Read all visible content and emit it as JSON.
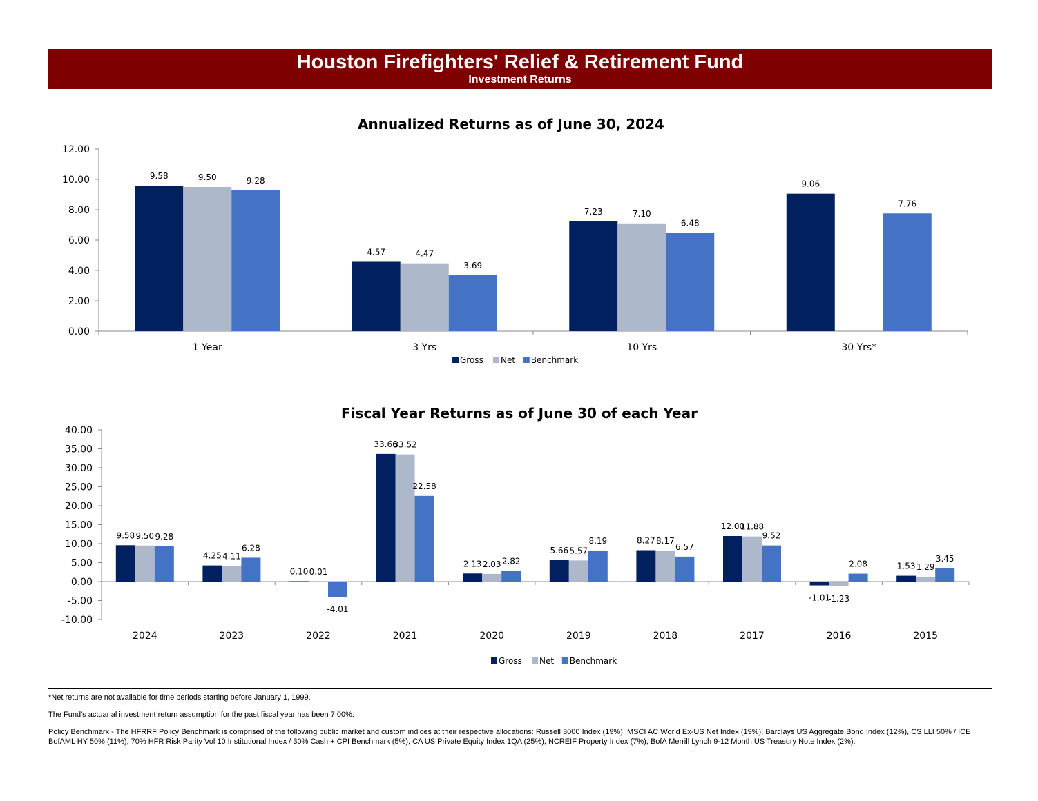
{
  "header": {
    "title": "Houston Firefighters' Relief & Retirement Fund",
    "subtitle": "Investment Returns"
  },
  "colors": {
    "gross": "#002060",
    "net": "#adb9ca",
    "benchmark": "#4472c4",
    "banner": "#7f0000"
  },
  "chart_data": [
    {
      "type": "bar",
      "title": "Annualized Returns as of June 30, 2024",
      "categories": [
        "1 Year",
        "3 Yrs",
        "10 Yrs",
        "30 Yrs*"
      ],
      "series": [
        {
          "name": "Gross",
          "values": [
            9.58,
            4.57,
            7.23,
            9.06
          ],
          "labels": [
            "9.58",
            "4.57",
            "7.23",
            "9.06"
          ]
        },
        {
          "name": "Net",
          "values": [
            9.5,
            4.47,
            7.1,
            null
          ],
          "labels": [
            "9.50",
            "4.47",
            "7.10",
            ""
          ]
        },
        {
          "name": "Benchmark",
          "values": [
            9.28,
            3.69,
            6.48,
            7.76
          ],
          "labels": [
            "9.28",
            "3.69",
            "6.48",
            "7.76"
          ]
        }
      ],
      "ylim": [
        0,
        12
      ],
      "yticks": [
        "0.00",
        "2.00",
        "4.00",
        "6.00",
        "8.00",
        "10.00",
        "12.00"
      ],
      "ytick_values": [
        0,
        2,
        4,
        6,
        8,
        10,
        12
      ],
      "legend": "bottom",
      "grid": false
    },
    {
      "type": "bar",
      "title": "Fiscal Year Returns as of June 30 of each Year",
      "categories": [
        "2024",
        "2023",
        "2022",
        "2021",
        "2020",
        "2019",
        "2018",
        "2017",
        "2016",
        "2015"
      ],
      "series": [
        {
          "name": "Gross",
          "values": [
            9.58,
            4.25,
            0.1,
            33.66,
            2.13,
            5.66,
            8.27,
            12.0,
            -1.01,
            1.53
          ],
          "labels": [
            "9.58",
            "4.25",
            "0.10",
            "33.66",
            "2.13",
            "5.66",
            "8.27",
            "12.00",
            "-1.01",
            "1.53"
          ]
        },
        {
          "name": "Net",
          "values": [
            9.5,
            4.11,
            0.01,
            33.52,
            2.03,
            5.57,
            8.17,
            11.88,
            -1.23,
            1.29
          ],
          "labels": [
            "9.50",
            "4.11",
            "0.01",
            "33.52",
            "2.03",
            "5.57",
            "8.17",
            "11.88",
            "-1.23",
            "1.29"
          ]
        },
        {
          "name": "Benchmark",
          "values": [
            9.28,
            6.28,
            -4.01,
            22.58,
            2.82,
            8.19,
            6.57,
            9.52,
            2.08,
            3.45
          ],
          "labels": [
            "9.28",
            "6.28",
            "-4.01",
            "22.58",
            "2.82",
            "8.19",
            "6.57",
            "9.52",
            "2.08",
            "3.45"
          ]
        }
      ],
      "ylim": [
        -10,
        40
      ],
      "yticks": [
        "-10.00",
        "-5.00",
        "0.00",
        "5.00",
        "10.00",
        "15.00",
        "20.00",
        "25.00",
        "30.00",
        "35.00",
        "40.00"
      ],
      "ytick_values": [
        -10,
        -5,
        0,
        5,
        10,
        15,
        20,
        25,
        30,
        35,
        40
      ],
      "legend": "bottom",
      "grid": false
    }
  ],
  "footer": {
    "note1": "*Net returns are not available for time periods starting before January 1, 1999.",
    "note2": "The Fund's actuarial investment return assumption for the past fiscal year has been 7.00%.",
    "note3": "Policy Benchmark - The HFRRF Policy Benchmark is comprised of the following public market and custom indices at their respective allocations: Russell 3000 Index (19%), MSCI AC World Ex-US Net Index (19%), Barclays US Aggregate Bond Index (12%), CS LLI 50% / ICE BofAML HY 50% (11%), 70% HFR Risk Parity Vol 10 Institutional Index / 30% Cash + CPI Benchmark (5%), CA US Private Equity Index 1QA (25%), NCREIF Property Index (7%), BofA Merrill Lynch 9-12 Month US Treasury Note Index (2%)."
  }
}
